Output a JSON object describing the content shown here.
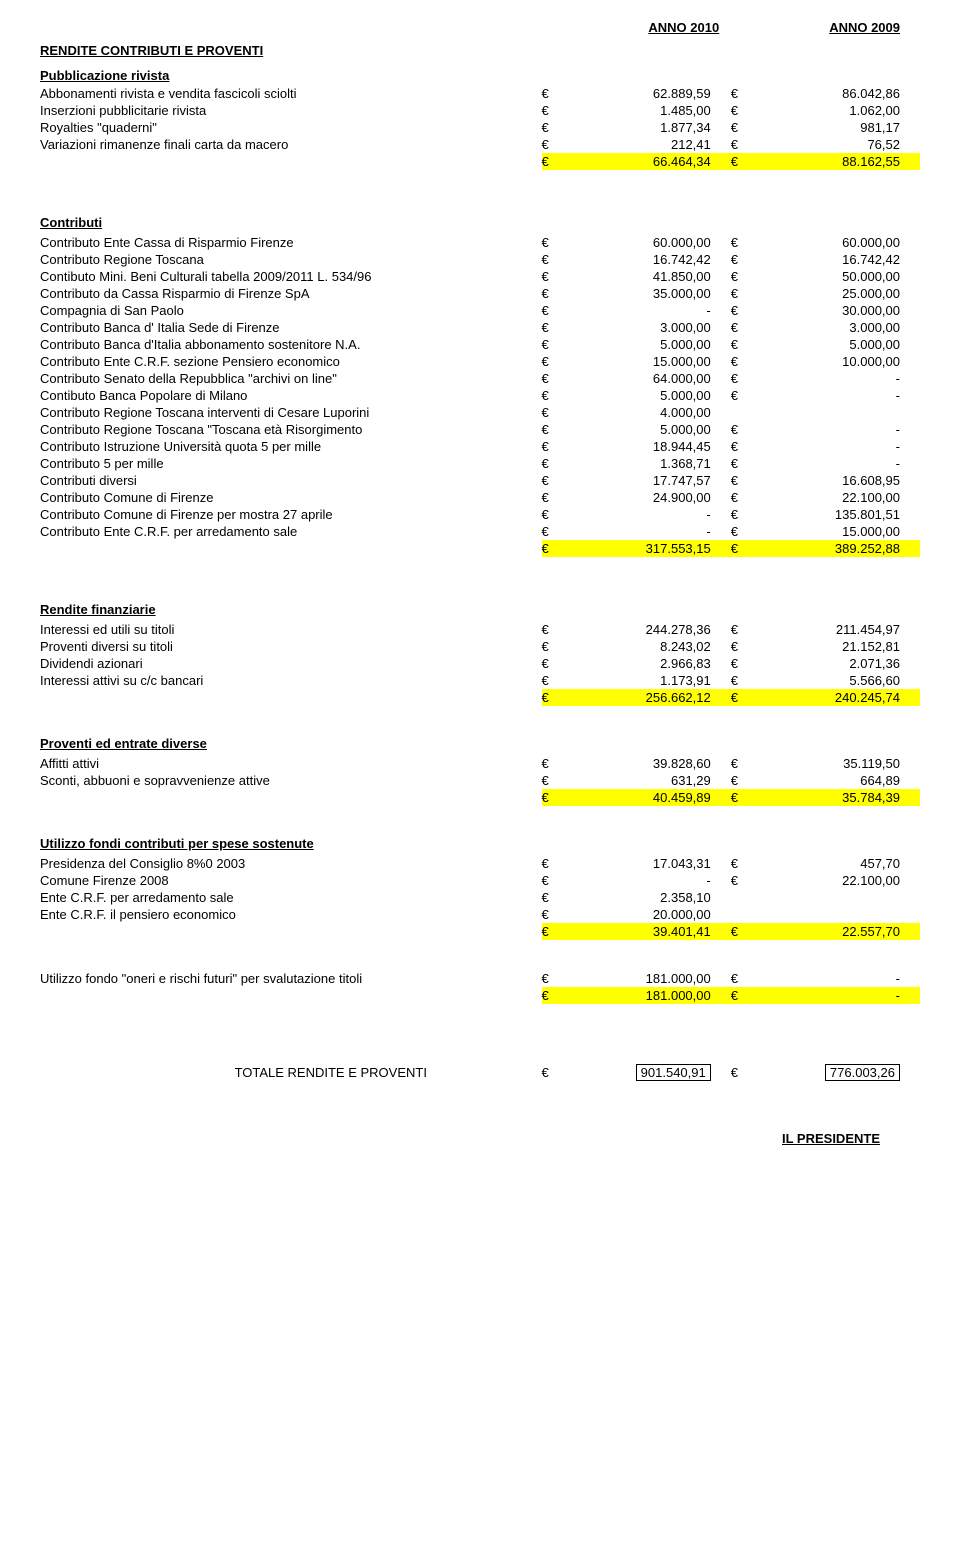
{
  "years": {
    "y1": "ANNO 2010",
    "y2": "ANNO 2009"
  },
  "main_title": "RENDITE CONTRIBUTI E PROVENTI",
  "sections": {
    "pubblicazione": {
      "title": "Pubblicazione rivista",
      "rows": [
        {
          "label": "Abbonamenti rivista e vendita fascicoli sciolti",
          "v1": "62.889,59",
          "v2": "86.042,86"
        },
        {
          "label": "Inserzioni pubblicitarie rivista",
          "v1": "1.485,00",
          "v2": "1.062,00"
        },
        {
          "label": "Royalties \"quaderni\"",
          "v1": "1.877,34",
          "v2": "981,17"
        },
        {
          "label": "Variazioni rimanenze finali carta da macero",
          "v1": "212,41",
          "v2": "76,52"
        }
      ],
      "total": {
        "v1": "66.464,34",
        "v2": "88.162,55"
      }
    },
    "contributi": {
      "title": "Contributi",
      "rows": [
        {
          "label": "Contributo Ente Cassa di Risparmio Firenze",
          "v1": "60.000,00",
          "v2": "60.000,00"
        },
        {
          "label": "Contributo Regione Toscana",
          "v1": "16.742,42",
          "v2": "16.742,42"
        },
        {
          "label": "Contibuto Mini. Beni Culturali tabella 2009/2011 L. 534/96",
          "v1": "41.850,00",
          "v2": "50.000,00"
        },
        {
          "label": "Contributo da Cassa Risparmio di Firenze SpA",
          "v1": "35.000,00",
          "v2": "25.000,00"
        },
        {
          "label": "Compagnia di San Paolo",
          "v1": "-",
          "v2": "30.000,00"
        },
        {
          "label": "Contributo Banca d' Italia Sede di Firenze",
          "v1": "3.000,00",
          "v2": "3.000,00"
        },
        {
          "label": "Contributo Banca d'Italia abbonamento sostenitore N.A.",
          "v1": "5.000,00",
          "v2": "5.000,00"
        },
        {
          "label": "Contributo Ente C.R.F. sezione Pensiero economico",
          "v1": "15.000,00",
          "v2": "10.000,00"
        },
        {
          "label": "Contributo Senato della Repubblica \"archivi on line\"",
          "v1": "64.000,00",
          "v2": "-"
        },
        {
          "label": "Contibuto Banca Popolare di Milano",
          "v1": "5.000,00",
          "v2": "-"
        },
        {
          "label": "Contributo Regione Toscana interventi di Cesare Luporini",
          "v1": "4.000,00",
          "v2": ""
        },
        {
          "label": "Contributo Regione Toscana  \"Toscana età Risorgimento",
          "v1": "5.000,00",
          "v2": "-"
        },
        {
          "label": "Contributo Istruzione Università  quota 5 per mille",
          "v1": "18.944,45",
          "v2": "-"
        },
        {
          "label": "Contributo 5 per mille",
          "v1": "1.368,71",
          "v2": "-"
        },
        {
          "label": "Contributi diversi",
          "v1": "17.747,57",
          "v2": "16.608,95"
        },
        {
          "label": "Contributo Comune di Firenze",
          "v1": "24.900,00",
          "v2": "22.100,00"
        },
        {
          "label": "Contributo Comune di Firenze per mostra 27 aprile",
          "v1": "-",
          "v2": "135.801,51"
        },
        {
          "label": "Contributo Ente C.R.F. per arredamento sale",
          "v1": "-",
          "v2": "15.000,00"
        }
      ],
      "total": {
        "v1": "317.553,15",
        "v2": "389.252,88"
      }
    },
    "rendite_fin": {
      "title": "Rendite finanziarie",
      "rows": [
        {
          "label": "Interessi ed utili su titoli",
          "v1": "244.278,36",
          "v2": "211.454,97"
        },
        {
          "label": "Proventi diversi su titoli",
          "v1": "8.243,02",
          "v2": "21.152,81"
        },
        {
          "label": "Dividendi azionari",
          "v1": "2.966,83",
          "v2": "2.071,36"
        },
        {
          "label": "Interessi attivi su c/c bancari",
          "v1": "1.173,91",
          "v2": "5.566,60"
        }
      ],
      "total": {
        "v1": "256.662,12",
        "v2": "240.245,74"
      }
    },
    "proventi": {
      "title": "Proventi ed entrate diverse",
      "rows": [
        {
          "label": "Affitti attivi",
          "v1": "39.828,60",
          "v2": "35.119,50"
        },
        {
          "label": "Sconti, abbuoni e sopravvenienze attive",
          "v1": "631,29",
          "v2": "664,89"
        }
      ],
      "total": {
        "v1": "40.459,89",
        "v2": "35.784,39"
      }
    },
    "utilizzo_fondi": {
      "title": "Utilizzo fondi contributi per spese sostenute",
      "rows": [
        {
          "label": "Presidenza del Consiglio 8%0   2003",
          "v1": "17.043,31",
          "v2": "457,70"
        },
        {
          "label": "Comune Firenze 2008",
          "v1": "-",
          "v2": "22.100,00"
        },
        {
          "label": "Ente C.R.F. per arredamento sale",
          "v1": "2.358,10",
          "v2": ""
        },
        {
          "label": "Ente C.R.F. il pensiero economico",
          "v1": "20.000,00",
          "v2": ""
        }
      ],
      "total": {
        "v1": "39.401,41",
        "v2": "22.557,70"
      }
    },
    "utilizzo_oneri": {
      "rows": [
        {
          "label": "Utilizzo fondo \"oneri e rischi futuri\" per svalutazione titoli",
          "v1": "181.000,00",
          "v2": "-"
        }
      ],
      "total": {
        "v1": "181.000,00",
        "v2": "-"
      }
    }
  },
  "grand_total": {
    "label": "TOTALE RENDITE E PROVENTI",
    "v1": "901.540,91",
    "v2": "776.003,26"
  },
  "signature": "IL PRESIDENTE",
  "currency": "€",
  "colors": {
    "highlight": "#ffff00",
    "text": "#000000",
    "bg": "#ffffff"
  }
}
